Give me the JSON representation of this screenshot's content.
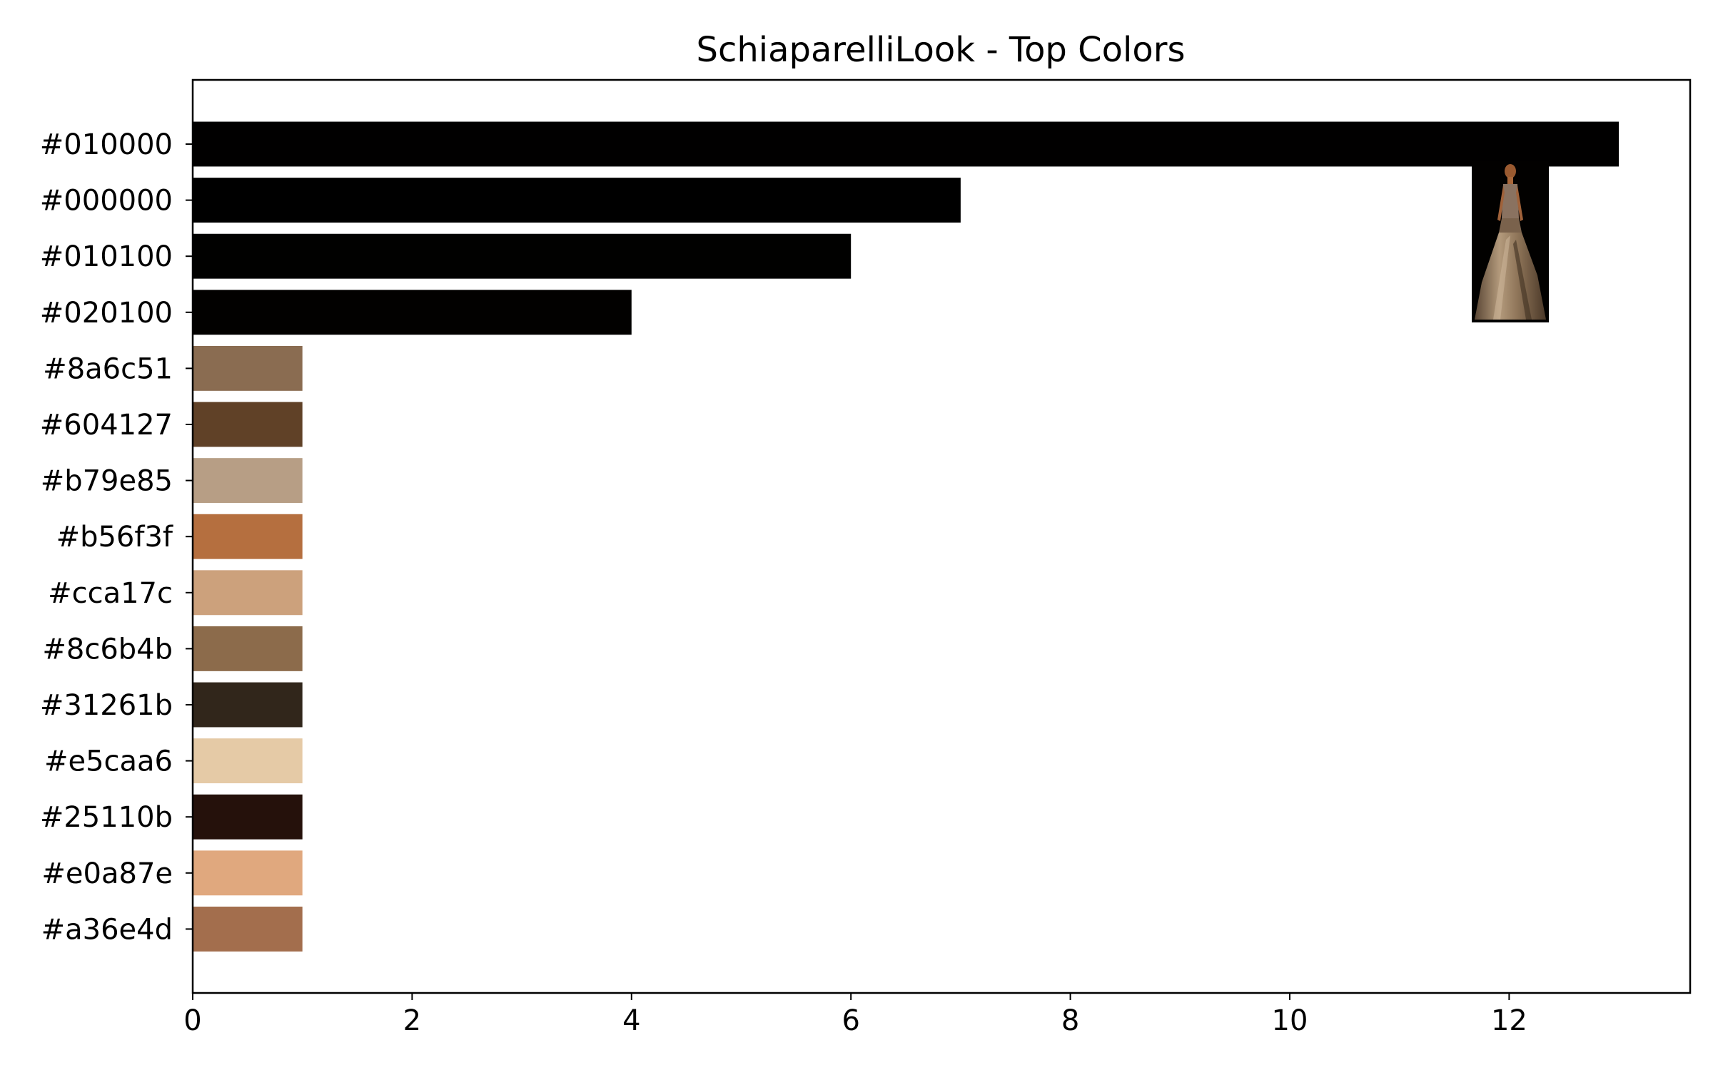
{
  "chart_data": {
    "type": "bar",
    "orientation": "horizontal",
    "title": "SchiaparelliLook - Top Colors",
    "xlabel": "",
    "ylabel": "",
    "xlim": [
      0,
      13.65
    ],
    "x_ticks": [
      0,
      2,
      4,
      6,
      8,
      10,
      12
    ],
    "grid": false,
    "legend": "none",
    "categories": [
      "#010000",
      "#000000",
      "#010100",
      "#020100",
      "#8a6c51",
      "#604127",
      "#b79e85",
      "#b56f3f",
      "#cca17c",
      "#8c6b4b",
      "#31261b",
      "#e5caa6",
      "#25110b",
      "#e0a87e",
      "#a36e4d"
    ],
    "values": [
      13,
      7,
      6,
      4,
      1,
      1,
      1,
      1,
      1,
      1,
      1,
      1,
      1,
      1,
      1
    ],
    "bar_colors": [
      "#010000",
      "#000000",
      "#010100",
      "#020100",
      "#8a6c51",
      "#604127",
      "#b79e85",
      "#b56f3f",
      "#cca17c",
      "#8c6b4b",
      "#31261b",
      "#e5caa6",
      "#25110b",
      "#e0a87e",
      "#a36e4d"
    ],
    "inset_image": "runway-look-thumbnail"
  }
}
